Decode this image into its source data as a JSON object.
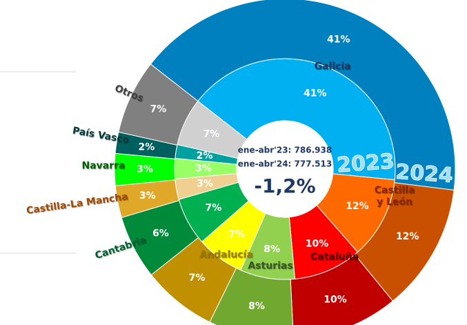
{
  "chart_data": {
    "type": "donut",
    "categories": [
      "Galicia",
      "Castilla y León",
      "Cataluña",
      "Asturias",
      "Andalucía",
      "Cantabria",
      "Castilla-La Mancha",
      "Navarra",
      "País Vasco",
      "Otros"
    ],
    "series": [
      {
        "name": "2023",
        "colors": [
          "#00b0f0",
          "#ff6a00",
          "#ff0000",
          "#92d050",
          "#ffff00",
          "#00b050",
          "#f0d090",
          "#99ff66",
          "#00a0a0",
          "#d0d0d0"
        ],
        "values": [
          41,
          12,
          10,
          8,
          7,
          7,
          3,
          3,
          2,
          7
        ],
        "value_labels": [
          "41%",
          "12%",
          "10%",
          "8%",
          "7%",
          "7%",
          "3%",
          "3%",
          "2%",
          "7%"
        ]
      },
      {
        "name": "2024",
        "colors": [
          "#0080bf",
          "#c85000",
          "#c00000",
          "#70a830",
          "#c09000",
          "#008a3a",
          "#e0a828",
          "#00ff00",
          "#006060",
          "#808080"
        ],
        "values": [
          41,
          12,
          10,
          8,
          7,
          6,
          3,
          3,
          2,
          7
        ],
        "value_labels": [
          "41%",
          "12%",
          "10%",
          "8%",
          "7%",
          "6%",
          "3%",
          "3%",
          "2%",
          "7%"
        ]
      }
    ],
    "center_lines": [
      "ene-abr'23: 786.938",
      "ene-abr'24: 777.513"
    ],
    "center_value": "-1,2%"
  }
}
